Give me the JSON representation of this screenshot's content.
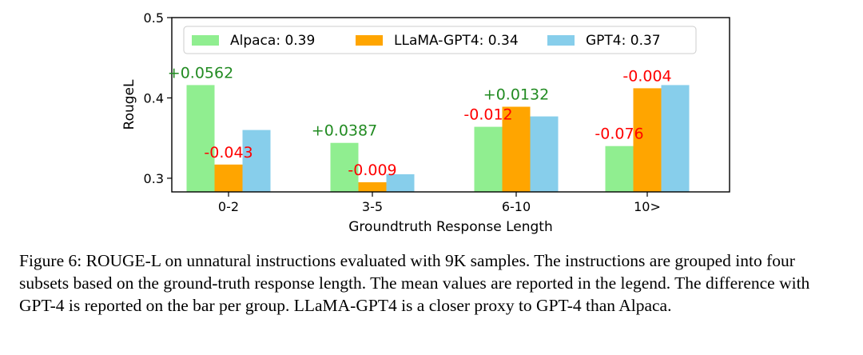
{
  "chart_data": {
    "type": "bar",
    "categories": [
      "0-2",
      "3-5",
      "6-10",
      "10>"
    ],
    "series": [
      {
        "name": "Alpaca: 0.39",
        "values": [
          0.416,
          0.344,
          0.364,
          0.34
        ]
      },
      {
        "name": "LLaMA-GPT4: 0.34",
        "values": [
          0.317,
          0.295,
          0.389,
          0.412
        ]
      },
      {
        "name": "GPT4: 0.37",
        "values": [
          0.36,
          0.305,
          0.377,
          0.416
        ]
      }
    ],
    "diff_labels": [
      {
        "category": "0-2",
        "series": "Alpaca: 0.39",
        "text": "+0.0562"
      },
      {
        "category": "0-2",
        "series": "LLaMA-GPT4: 0.34",
        "text": "-0.043"
      },
      {
        "category": "3-5",
        "series": "Alpaca: 0.39",
        "text": "+0.0387"
      },
      {
        "category": "3-5",
        "series": "LLaMA-GPT4: 0.34",
        "text": "-0.009"
      },
      {
        "category": "6-10",
        "series": "Alpaca: 0.39",
        "text": "-0.012"
      },
      {
        "category": "6-10",
        "series": "LLaMA-GPT4: 0.34",
        "text": "+0.0132"
      },
      {
        "category": "10>",
        "series": "Alpaca: 0.39",
        "text": "-0.076"
      },
      {
        "category": "10>",
        "series": "LLaMA-GPT4: 0.34",
        "text": "-0.004"
      }
    ],
    "xlabel": "Groundtruth Response Length",
    "ylabel": "RougeL",
    "ylim": [
      0.283,
      0.5
    ],
    "yticks": [
      0.3,
      0.4,
      0.5
    ],
    "ytick_labels": [
      "0.3",
      "0.4",
      "0.5"
    ],
    "legend_position": "top",
    "grid": false
  },
  "colors": {
    "Alpaca": "#90ee90",
    "LLaMA-GPT4": "#ffa500",
    "GPT4": "#87ceeb",
    "positive": "#228b22",
    "negative": "#ff0000"
  },
  "caption": "Figure 6: ROUGE-L on unnatural instructions evaluated with 9K samples. The instructions are grouped into four subsets based on the ground-truth response length. The mean values are reported in the legend. The difference with GPT-4 is reported on the bar per group. LLaMA-GPT4 is a closer proxy to GPT-4 than Alpaca."
}
